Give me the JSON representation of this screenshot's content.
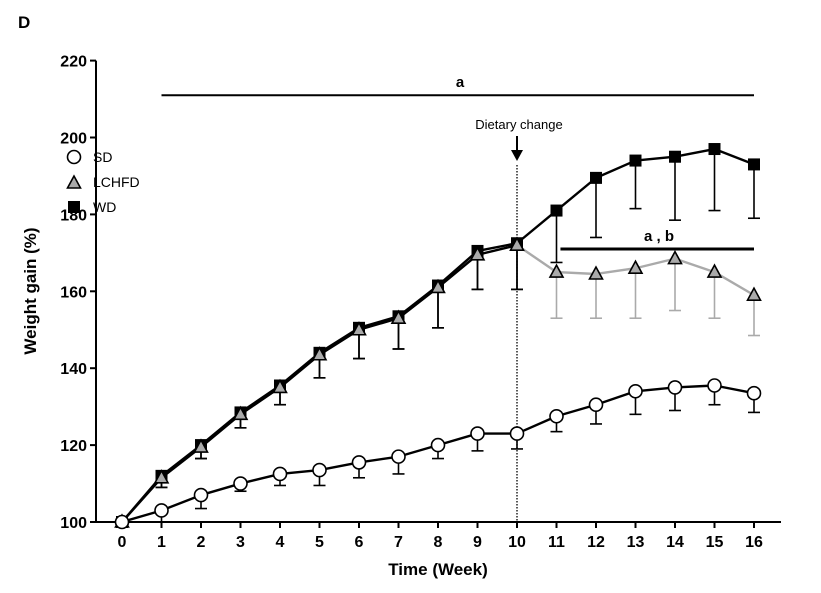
{
  "panel_label": "D",
  "chart_data": {
    "type": "line",
    "title": "",
    "xlabel": "Time (Week)",
    "ylabel": "Weight gain (%)",
    "xlim": [
      0,
      16
    ],
    "ylim": [
      100,
      220
    ],
    "x": [
      0,
      1,
      2,
      3,
      4,
      5,
      6,
      7,
      8,
      9,
      10,
      11,
      12,
      13,
      14,
      15,
      16
    ],
    "xticks": [
      "0",
      "1",
      "2",
      "3",
      "4",
      "5",
      "6",
      "7",
      "8",
      "9",
      "10",
      "11",
      "12",
      "13",
      "14",
      "15",
      "16"
    ],
    "yticks": [
      "100",
      "120",
      "140",
      "160",
      "180",
      "200",
      "220"
    ],
    "ytick_values": [
      100,
      120,
      140,
      160,
      180,
      200,
      220
    ],
    "grid": false,
    "legend_position": "top-left",
    "series": [
      {
        "name": "SD",
        "marker": "circle",
        "color": "#000000",
        "fill": "#ffffff",
        "values": [
          100,
          103,
          107,
          110,
          112.5,
          113.5,
          115.5,
          117,
          120,
          123,
          123,
          127.5,
          130.5,
          134,
          135,
          135.5,
          133.5
        ],
        "error_lower": [
          100,
          100,
          103.5,
          108,
          109.5,
          109.5,
          111.5,
          112.5,
          116.5,
          118.5,
          119,
          123.5,
          125.5,
          128,
          129,
          130.5,
          128.5
        ]
      },
      {
        "name": "LCHFD",
        "marker": "triangle",
        "color": "#000000",
        "line_color_after_change": "#aaaaaa",
        "fill": "#aaaaaa",
        "values": [
          100,
          111.5,
          119.5,
          128,
          135,
          143.5,
          150,
          153,
          161,
          169.5,
          172,
          165,
          164.5,
          166,
          168.5,
          165,
          159
        ],
        "error_lower": [
          100,
          109,
          116.5,
          124.5,
          130.5,
          137.5,
          142.5,
          145,
          150.5,
          160.5,
          160.5,
          153,
          153,
          153,
          155,
          153,
          148.5
        ]
      },
      {
        "name": "WD",
        "marker": "square",
        "color": "#000000",
        "fill": "#000000",
        "values": [
          100,
          112,
          120,
          128.5,
          135.5,
          144,
          150.5,
          153.5,
          161.5,
          170.5,
          172.5,
          181,
          189.5,
          194,
          195,
          197,
          193
        ],
        "error_lower": [
          100,
          109,
          116.5,
          124.5,
          130.5,
          137.5,
          142.5,
          145,
          150.5,
          160.5,
          160.5,
          167.5,
          174,
          181.5,
          178.5,
          181,
          179
        ]
      }
    ],
    "annotations": [
      {
        "text": "Dietary change",
        "x": 10,
        "type": "vertical-dotted-line-with-arrow"
      },
      {
        "text": "a",
        "x_range": [
          1,
          16
        ],
        "y": 211,
        "type": "significance-bar"
      },
      {
        "text": "a , b",
        "x_range": [
          11.1,
          16
        ],
        "y": 171,
        "type": "significance-bar"
      }
    ]
  }
}
